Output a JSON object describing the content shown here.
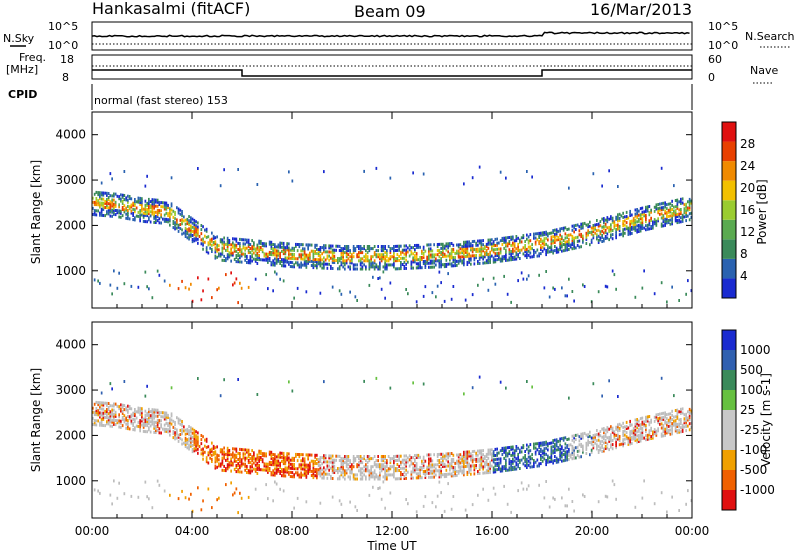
{
  "header": {
    "station": "Hankasalmi (fitACF)",
    "beam": "Beam 09",
    "date": "16/Mar/2013"
  },
  "top_panel": {
    "nsky_label": "N.Sky",
    "nsearch_label": "N.Search",
    "left_ticks": [
      "10^5",
      "10^0"
    ],
    "right_ticks": [
      "10^5",
      "10^0"
    ],
    "freq_label_1": "Freq.",
    "freq_label_2": "[MHz]",
    "freq_ticks": [
      "18",
      "8"
    ],
    "nave_label": "Nave",
    "nave_ticks": [
      "60",
      "0"
    ],
    "cpid_label": "CPID",
    "cpid_text": "normal (fast stereo) 153"
  },
  "colors": {
    "power_scale": [
      "#1a2bd0",
      "#2a62b0",
      "#3a8a5a",
      "#5aaa50",
      "#9acc30",
      "#f2c000",
      "#f08a00",
      "#e84000",
      "#e01010"
    ],
    "velocity_scale": [
      "#1a2bd0",
      "#3060b0",
      "#3a8a5a",
      "#66c040",
      "#c8c8c8",
      "#c8c8c8",
      "#f0a000",
      "#f06000",
      "#e01010"
    ],
    "ground_scatter": "#bdbdbd"
  },
  "chart_data": [
    {
      "type": "heatmap",
      "panel": "power",
      "ylabel": "Slant Range [km]",
      "xlabel": "Time UT",
      "ylim": [
        180,
        4500
      ],
      "yticks": [
        1000,
        2000,
        3000,
        4000
      ],
      "xticks": [
        "00:00",
        "04:00",
        "08:00",
        "12:00",
        "16:00",
        "20:00",
        "00:00"
      ],
      "colorbar_label": "Power [dB]",
      "colorbar_ticks": [
        "4",
        "8",
        "12",
        "16",
        "20",
        "24",
        "28"
      ],
      "approx_band": {
        "hours": [
          0,
          1,
          2,
          3,
          4,
          5,
          6,
          7,
          8,
          10,
          12,
          14,
          16,
          18,
          20,
          22,
          24
        ],
        "range_km": [
          2500,
          2450,
          2350,
          2300,
          1900,
          1500,
          1450,
          1400,
          1350,
          1300,
          1300,
          1350,
          1450,
          1600,
          1850,
          2150,
          2400
        ]
      }
    },
    {
      "type": "heatmap",
      "panel": "velocity",
      "ylabel": "Slant Range [km]",
      "xlabel": "Time UT",
      "ylim": [
        180,
        4500
      ],
      "yticks": [
        1000,
        2000,
        3000,
        4000
      ],
      "xticks": [
        "00:00",
        "04:00",
        "08:00",
        "12:00",
        "16:00",
        "20:00",
        "00:00"
      ],
      "colorbar_label": "Velocity [m s-1]",
      "colorbar_ticks": [
        "1000",
        "500",
        "100",
        "25",
        "-25",
        "-100",
        "-500",
        "-1000"
      ]
    }
  ],
  "axis_text": {
    "xlabel": "Time UT",
    "ylabel": "Slant Range [km]"
  }
}
